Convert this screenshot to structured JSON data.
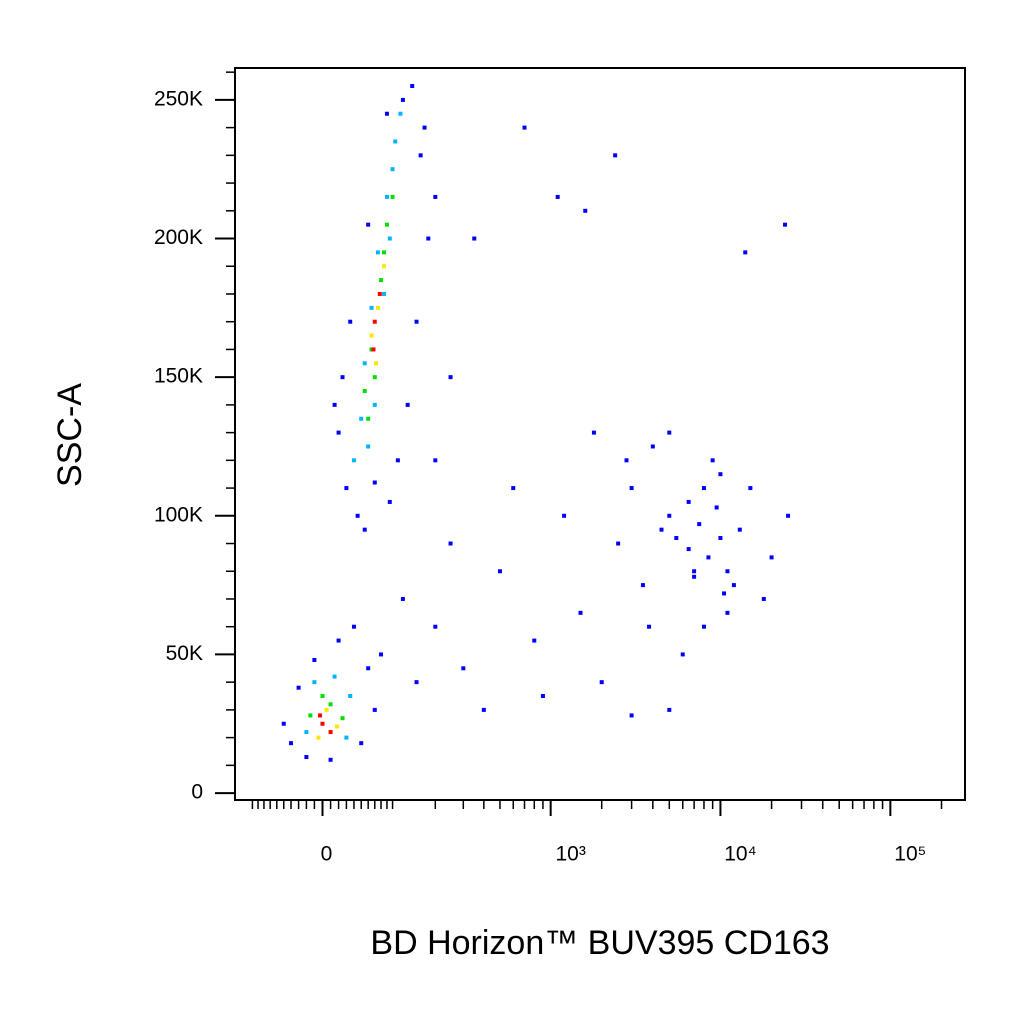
{
  "chart_data": {
    "type": "scatter",
    "xlabel": "BD Horizon™ BUV395 CD163",
    "ylabel": "SSC-A",
    "xscale": "biexponential",
    "xlim": [
      -135,
      275000
    ],
    "ylim": [
      -2500,
      261500
    ],
    "xticks": [
      0,
      {
        "value": 1000,
        "label": "10³"
      },
      {
        "value": 10000,
        "label": "10⁴"
      },
      {
        "value": 100000,
        "label": "10⁵"
      }
    ],
    "xminorticks": [
      -100,
      -90,
      -80,
      -70,
      -60,
      -50,
      -40,
      -30,
      -20,
      -10,
      10,
      20,
      30,
      40,
      50,
      60,
      70,
      80,
      90,
      100,
      200,
      300,
      400,
      500,
      600,
      700,
      800,
      900,
      2000,
      3000,
      4000,
      5000,
      6000,
      7000,
      8000,
      9000,
      20000,
      30000,
      40000,
      50000,
      60000,
      70000,
      80000,
      90000,
      200000
    ],
    "yticks": [
      0,
      {
        "value": 50000,
        "label": "50K"
      },
      {
        "value": 100000,
        "label": "100K"
      },
      {
        "value": 150000,
        "label": "150K"
      },
      {
        "value": 200000,
        "label": "200K"
      },
      {
        "value": 250000,
        "label": "250K"
      }
    ],
    "yminorticks": [
      10000,
      20000,
      30000,
      40000,
      60000,
      70000,
      80000,
      90000,
      110000,
      120000,
      130000,
      140000,
      160000,
      170000,
      180000,
      190000,
      210000,
      220000,
      230000,
      240000,
      260000
    ],
    "series": [
      {
        "color": "#0000ff",
        "x": [
          30,
          55,
          45,
          20,
          25,
          35,
          60,
          90,
          140,
          160,
          180,
          150,
          130,
          110,
          95,
          15,
          70,
          120,
          170,
          200,
          -50,
          -40,
          -20,
          10,
          50,
          70,
          60,
          20,
          -10,
          -30,
          40,
          80,
          120,
          200,
          300,
          500,
          800,
          1500,
          2500,
          3000,
          4000,
          5000,
          1200,
          600,
          400,
          900,
          2000,
          6000,
          8000,
          12000,
          20000,
          25000,
          15000,
          9000,
          7000,
          3500,
          18000,
          4500,
          2800,
          1800,
          250,
          350,
          1100,
          1600,
          2400,
          14000,
          24000,
          700,
          200,
          3000,
          5000,
          10000,
          11000,
          6500,
          3800,
          150,
          250,
          5500,
          7500,
          8500,
          10000,
          11000,
          9500,
          6500,
          13000,
          7000,
          10500,
          5000,
          8000
        ],
        "y": [
          110000,
          95000,
          100000,
          130000,
          150000,
          170000,
          205000,
          245000,
          255000,
          230000,
          200000,
          170000,
          140000,
          120000,
          105000,
          140000,
          112000,
          250000,
          240000,
          215000,
          25000,
          18000,
          13000,
          12000,
          18000,
          30000,
          45000,
          55000,
          48000,
          38000,
          60000,
          50000,
          70000,
          60000,
          45000,
          80000,
          55000,
          65000,
          90000,
          110000,
          125000,
          130000,
          100000,
          110000,
          30000,
          35000,
          40000,
          50000,
          60000,
          75000,
          85000,
          100000,
          110000,
          120000,
          80000,
          75000,
          70000,
          95000,
          120000,
          130000,
          150000,
          200000,
          215000,
          210000,
          230000,
          195000,
          205000,
          240000,
          120000,
          28000,
          30000,
          115000,
          65000,
          105000,
          60000,
          40000,
          90000,
          92000,
          97000,
          85000,
          92000,
          80000,
          103000,
          88000,
          95000,
          78000,
          72000,
          100000,
          110000
        ]
      },
      {
        "color": "#00b4ff",
        "x": [
          40,
          50,
          55,
          65,
          75,
          90,
          105,
          115,
          85,
          70,
          95,
          60,
          100,
          -20,
          30,
          35,
          -10,
          15
        ],
        "y": [
          120000,
          135000,
          155000,
          175000,
          195000,
          215000,
          235000,
          245000,
          180000,
          140000,
          200000,
          125000,
          225000,
          22000,
          20000,
          35000,
          40000,
          42000
        ]
      },
      {
        "color": "#00e000",
        "x": [
          55,
          65,
          80,
          90,
          70,
          85,
          60,
          100,
          0,
          10,
          -15,
          25
        ],
        "y": [
          145000,
          160000,
          185000,
          205000,
          150000,
          195000,
          135000,
          215000,
          35000,
          32000,
          28000,
          27000
        ]
      },
      {
        "color": "#ffe600",
        "x": [
          65,
          75,
          85,
          72,
          5,
          -5,
          18
        ],
        "y": [
          165000,
          175000,
          190000,
          155000,
          30000,
          20000,
          24000
        ]
      },
      {
        "color": "#ff0000",
        "x": [
          70,
          78,
          68,
          0,
          10,
          -3
        ],
        "y": [
          170000,
          180000,
          160000,
          25000,
          22000,
          28000
        ]
      }
    ]
  }
}
